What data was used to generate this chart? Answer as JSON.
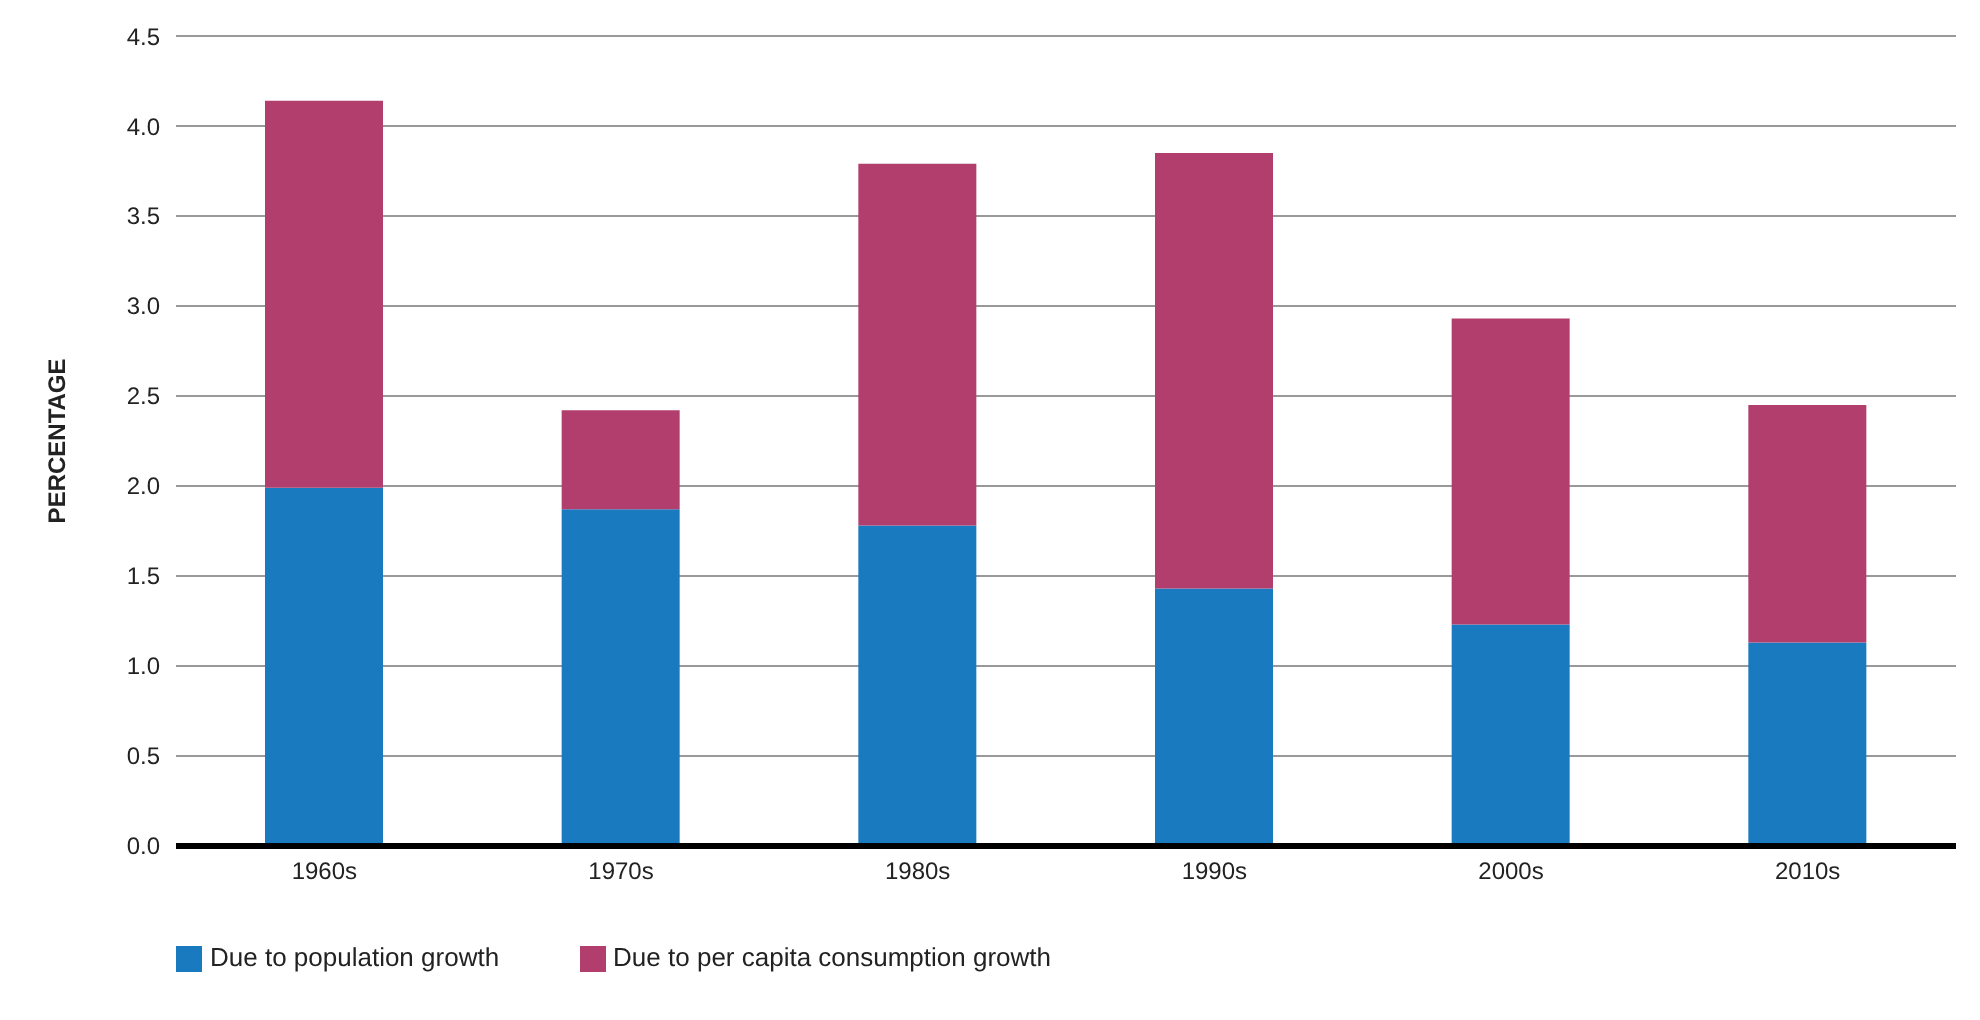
{
  "chart_data": {
    "type": "bar",
    "stacked": true,
    "ylabel": "PERCENTAGE",
    "categories": [
      "1960s",
      "1970s",
      "1980s",
      "1990s",
      "2000s",
      "2010s"
    ],
    "series": [
      {
        "name": "Due to population growth",
        "color": "#1a7abf",
        "values": [
          1.99,
          1.87,
          1.78,
          1.43,
          1.23,
          1.13
        ]
      },
      {
        "name": "Due to per capita consumption growth",
        "color": "#b23e6e",
        "values": [
          2.15,
          0.55,
          2.01,
          2.42,
          1.7,
          1.32
        ]
      }
    ],
    "ylim": [
      0,
      4.5
    ],
    "yticks": [
      {
        "value": 0,
        "label": "0.0"
      },
      {
        "value": 0.5,
        "label": "0.5"
      },
      {
        "value": 1,
        "label": "1.0"
      },
      {
        "value": 1.5,
        "label": "1.5"
      },
      {
        "value": 2,
        "label": "2.0"
      },
      {
        "value": 2.5,
        "label": "2.5"
      },
      {
        "value": 3,
        "label": "3.0"
      },
      {
        "value": 3.5,
        "label": "3.5"
      },
      {
        "value": 4,
        "label": "4.0"
      },
      {
        "value": 4.5,
        "label": "4.5"
      }
    ],
    "grid": "y",
    "legend": "bottom left"
  }
}
